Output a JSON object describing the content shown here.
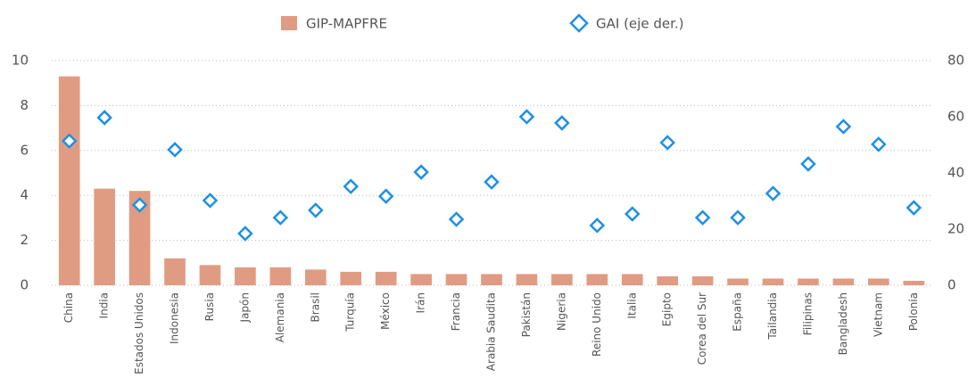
{
  "chart_data": {
    "type": "bar_scatter_dual",
    "categories": [
      "China",
      "India",
      "Estados Unidos",
      "Indonesia",
      "Rusia",
      "Japón",
      "Alemania",
      "Brasil",
      "Turquía",
      "México",
      "Irán",
      "Francia",
      "Arabia Saudita",
      "Pakistán",
      "Nigeria",
      "Reino Unido",
      "Italia",
      "Egipto",
      "Corea del Sur",
      "España",
      "Tailandia",
      "Filipinas",
      "Bangladesh",
      "Vietnam",
      "Polonia"
    ],
    "series": [
      {
        "name": "GIP-MAPFRE",
        "color": "#e09c83",
        "type": "bar",
        "axis": "y",
        "values": [
          9.3,
          4.3,
          4.2,
          1.2,
          0.9,
          0.8,
          0.8,
          0.7,
          0.6,
          0.6,
          0.5,
          0.5,
          0.5,
          0.5,
          0.5,
          0.5,
          0.5,
          0.4,
          0.4,
          0.3,
          0.3,
          0.3,
          0.3,
          0.3,
          0.2
        ]
      },
      {
        "name": "GAI (eje der.)",
        "color": "#1e90e6",
        "type": "scatter",
        "axis": "y2",
        "values": [
          51.4,
          59.7,
          28.6,
          48.3,
          30.2,
          18.4,
          24.1,
          26.7,
          35.2,
          31.7,
          40.3,
          23.5,
          36.8,
          60,
          57.8,
          21.3,
          25.4,
          50.8,
          24.1,
          24.1,
          32.7,
          43.2,
          56.5,
          50.2,
          27.6
        ]
      }
    ],
    "ylim": [
      0,
      10
    ],
    "yticks": [
      0,
      2,
      4,
      6,
      8,
      10
    ],
    "y2lim": [
      0,
      80
    ],
    "y2ticks": [
      0,
      20,
      40,
      60,
      80
    ],
    "grid": true,
    "legend": "top"
  }
}
